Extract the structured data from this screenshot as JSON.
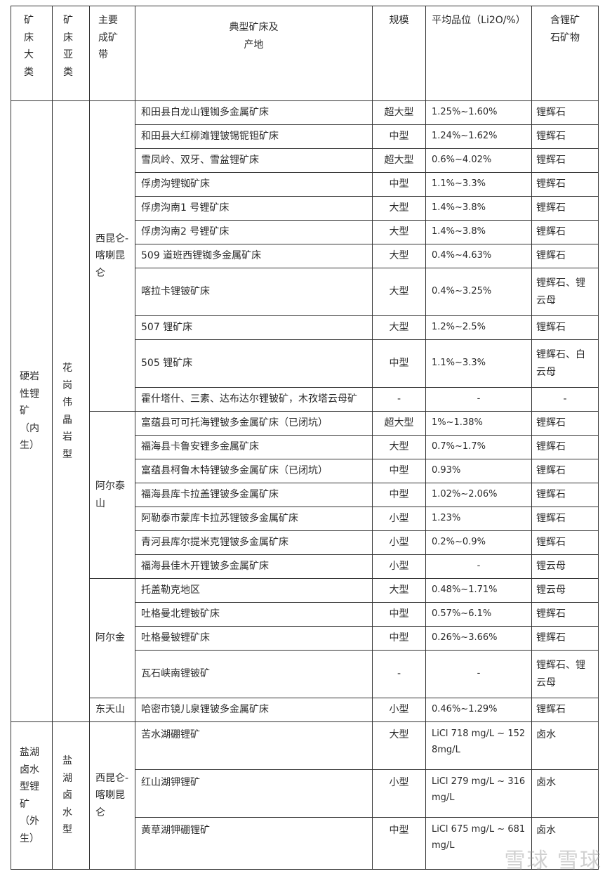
{
  "headers": {
    "category": "矿床大类",
    "subtype": "矿床亚类",
    "belt": "主要成矿带",
    "deposit": "典型矿床及产地",
    "scale": "规模",
    "grade": "平均品位（Li2O/%）",
    "mineral": "含锂矿石矿物"
  },
  "categories": [
    {
      "name": "硬岩性锂矿（内生）",
      "subtypes": [
        {
          "name": "花岗伟晶岩型",
          "belts": [
            {
              "name": "西昆仑-喀喇昆仑",
              "deposits": [
                {
                  "name": "和田县白龙山锂铷多金属矿床",
                  "scale": "超大型",
                  "grade": "1.25%~1.60%",
                  "mineral": "锂辉石"
                },
                {
                  "name": "和田县大红柳滩锂铍锡铌钽矿床",
                  "scale": "中型",
                  "grade": "1.24%~1.62%",
                  "mineral": "锂辉石"
                },
                {
                  "name": "雪凤岭、双牙、雪盆锂矿床",
                  "scale": "超大型",
                  "grade": "0.6%~4.02%",
                  "mineral": "锂辉石"
                },
                {
                  "name": "俘虏沟锂铷矿床",
                  "scale": "中型",
                  "grade": "1.1%~3.3%",
                  "mineral": "锂辉石"
                },
                {
                  "name": "俘虏沟南1 号锂矿床",
                  "scale": "大型",
                  "grade": "1.4%~3.8%",
                  "mineral": "锂辉石"
                },
                {
                  "name": "俘虏沟南2 号锂矿床",
                  "scale": "大型",
                  "grade": "1.4%~3.8%",
                  "mineral": "锂辉石"
                },
                {
                  "name": "509 道班西锂铷多金属矿床",
                  "scale": "大型",
                  "grade": "0.4%~4.63%",
                  "mineral": "锂辉石"
                },
                {
                  "name": "喀拉卡锂铍矿床",
                  "scale": "大型",
                  "grade": "0.4%~3.25%",
                  "mineral": "锂辉石、锂云母",
                  "tall": true
                },
                {
                  "name": "507 锂矿床",
                  "scale": "大型",
                  "grade": "1.2%~2.5%",
                  "mineral": "锂辉石"
                },
                {
                  "name": "505 锂矿床",
                  "scale": "中型",
                  "grade": "1.1%~3.3%",
                  "mineral": "锂辉石、白云母",
                  "tall": true
                },
                {
                  "name": "霍什塔什、三素、达布达尔锂铍矿，木孜塔云母矿",
                  "scale": "-",
                  "grade": "-",
                  "mineral": "-"
                }
              ]
            },
            {
              "name": "阿尔泰山",
              "deposits": [
                {
                  "name": "富蕴县可可托海锂铍多金属矿床（已闭坑）",
                  "scale": "超大型",
                  "grade": "1%~1.38%",
                  "mineral": "锂辉石"
                },
                {
                  "name": "福海县卡鲁安锂多金属矿床",
                  "scale": "大型",
                  "grade": "0.7%~1.7%",
                  "mineral": "锂辉石"
                },
                {
                  "name": "富蕴县柯鲁木特锂铍多金属矿床（已闭坑）",
                  "scale": "中型",
                  "grade": "0.93%",
                  "mineral": "锂辉石"
                },
                {
                  "name": "福海县库卡拉盖锂铍多金属矿床",
                  "scale": "中型",
                  "grade": "1.02%~2.06%",
                  "mineral": "锂辉石"
                },
                {
                  "name": "阿勒泰市蒙库卡拉苏锂铍多金属矿床",
                  "scale": "小型",
                  "grade": "1.23%",
                  "mineral": "锂辉石"
                },
                {
                  "name": "青河县库尔提米克锂铍多金属矿床",
                  "scale": "小型",
                  "grade": "0.2%~0.9%",
                  "mineral": "锂辉石"
                },
                {
                  "name": "福海县佳木开锂铍多金属矿床",
                  "scale": "小型",
                  "grade": "-",
                  "mineral": "锂云母"
                }
              ]
            },
            {
              "name": "阿尔金",
              "deposits": [
                {
                  "name": "托盖勒克地区",
                  "scale": "大型",
                  "grade": "0.48%~1.71%",
                  "mineral": "锂云母"
                },
                {
                  "name": "吐格曼北锂铍矿床",
                  "scale": "中型",
                  "grade": "0.57%~6.1%",
                  "mineral": "锂辉石"
                },
                {
                  "name": "吐格曼铍锂矿床",
                  "scale": "中型",
                  "grade": "0.26%~3.66%",
                  "mineral": "锂辉石"
                },
                {
                  "name": "瓦石峡南锂铍矿",
                  "scale": "-",
                  "grade": "-",
                  "mineral": "锂辉石、锂云母",
                  "tall": true
                }
              ]
            },
            {
              "name": "东天山",
              "deposits": [
                {
                  "name": "哈密市镜儿泉锂铍多金属矿床",
                  "scale": "小型",
                  "grade": "0.46%~1.29%",
                  "mineral": "锂辉石"
                }
              ]
            }
          ]
        }
      ]
    },
    {
      "name": "盐湖卤水型锂矿（外生）",
      "subtypes": [
        {
          "name": "盐湖卤水型",
          "belts": [
            {
              "name": "西昆仑-喀喇昆仑",
              "deposits": [
                {
                  "name": "苦水湖硼锂矿",
                  "scale": "大型",
                  "grade": "LiCl 718 mg/L ~ 1528mg/L",
                  "mineral": "卤水",
                  "tall": true,
                  "top": true
                },
                {
                  "name": "红山湖钾锂矿",
                  "scale": "小型",
                  "grade": "LiCl 279 mg/L ~ 316mg/L",
                  "mineral": "卤水",
                  "tall": true
                },
                {
                  "name": "黄草湖钾硼锂矿",
                  "scale": "中型",
                  "grade": "LiCl 675 mg/L ~ 681mg/L",
                  "mineral": "卤水",
                  "tall": true,
                  "last": true
                }
              ]
            }
          ]
        }
      ]
    }
  ],
  "watermark": "雪球 雪球"
}
